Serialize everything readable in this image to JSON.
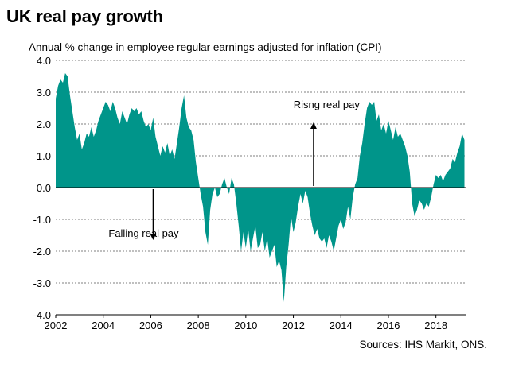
{
  "chart_data": {
    "type": "area",
    "title": "UK real pay growth",
    "subtitle": "Annual % change in employee regular earnings adjusted  for inflation (CPI)",
    "source": "Sources: IHS Markit, ONS.",
    "xlabel": "",
    "ylabel": "",
    "xlim": [
      2002,
      2019.25
    ],
    "ylim": [
      -4,
      4
    ],
    "y_ticks": [
      "4.0",
      "3.0",
      "2.0",
      "1.0",
      "0.0",
      "-1.0",
      "-2.0",
      "-3.0",
      "-4.0"
    ],
    "x_ticks": [
      "2002",
      "2004",
      "2006",
      "2008",
      "2010",
      "2012",
      "2014",
      "2016",
      "2018"
    ],
    "grid": "horizontal dashed",
    "fill_color": "#00958a",
    "annotations": [
      {
        "text": "Risng real pay",
        "x": 2013.4,
        "y": 2.5,
        "arrow_from_y": 0.05,
        "arrow_to_y": 1.95,
        "arrow_x": 2012.85
      },
      {
        "text": "Falling real pay",
        "x": 2005.7,
        "y": -1.55,
        "arrow_from_y": -0.05,
        "arrow_to_y": -1.55,
        "arrow_x": 2006.1
      }
    ],
    "x": [
      2002.0,
      2002.1,
      2002.2,
      2002.3,
      2002.4,
      2002.5,
      2002.6,
      2002.7,
      2002.8,
      2002.9,
      2003.0,
      2003.1,
      2003.2,
      2003.3,
      2003.4,
      2003.5,
      2003.6,
      2003.7,
      2003.8,
      2003.9,
      2004.0,
      2004.1,
      2004.2,
      2004.3,
      2004.4,
      2004.5,
      2004.6,
      2004.7,
      2004.8,
      2004.9,
      2005.0,
      2005.1,
      2005.2,
      2005.3,
      2005.4,
      2005.5,
      2005.6,
      2005.7,
      2005.8,
      2005.9,
      2006.0,
      2006.1,
      2006.2,
      2006.3,
      2006.4,
      2006.5,
      2006.6,
      2006.7,
      2006.8,
      2006.9,
      2007.0,
      2007.1,
      2007.2,
      2007.3,
      2007.4,
      2007.5,
      2007.6,
      2007.7,
      2007.8,
      2007.9,
      2008.0,
      2008.1,
      2008.2,
      2008.3,
      2008.4,
      2008.5,
      2008.6,
      2008.7,
      2008.8,
      2008.9,
      2009.0,
      2009.1,
      2009.2,
      2009.3,
      2009.4,
      2009.5,
      2009.6,
      2009.7,
      2009.8,
      2009.9,
      2010.0,
      2010.1,
      2010.2,
      2010.3,
      2010.4,
      2010.5,
      2010.6,
      2010.7,
      2010.8,
      2010.9,
      2011.0,
      2011.1,
      2011.2,
      2011.3,
      2011.4,
      2011.5,
      2011.6,
      2011.7,
      2011.8,
      2011.9,
      2012.0,
      2012.1,
      2012.2,
      2012.3,
      2012.4,
      2012.5,
      2012.6,
      2012.7,
      2012.8,
      2012.9,
      2013.0,
      2013.1,
      2013.2,
      2013.3,
      2013.4,
      2013.5,
      2013.6,
      2013.7,
      2013.8,
      2013.9,
      2014.0,
      2014.1,
      2014.2,
      2014.3,
      2014.4,
      2014.5,
      2014.6,
      2014.7,
      2014.8,
      2014.9,
      2015.0,
      2015.1,
      2015.2,
      2015.3,
      2015.4,
      2015.5,
      2015.6,
      2015.7,
      2015.8,
      2015.9,
      2016.0,
      2016.1,
      2016.2,
      2016.3,
      2016.4,
      2016.5,
      2016.6,
      2016.7,
      2016.8,
      2016.9,
      2017.0,
      2017.1,
      2017.2,
      2017.3,
      2017.4,
      2017.5,
      2017.6,
      2017.7,
      2017.8,
      2017.9,
      2018.0,
      2018.1,
      2018.2,
      2018.3,
      2018.4,
      2018.5,
      2018.6,
      2018.7,
      2018.8,
      2018.9,
      2019.0,
      2019.1,
      2019.2
    ],
    "y": [
      2.8,
      3.2,
      3.4,
      3.3,
      3.6,
      3.5,
      2.9,
      2.4,
      1.9,
      1.5,
      1.7,
      1.2,
      1.4,
      1.7,
      1.6,
      1.9,
      1.6,
      1.8,
      2.1,
      2.3,
      2.5,
      2.7,
      2.6,
      2.4,
      2.7,
      2.5,
      2.2,
      2.0,
      2.4,
      2.2,
      2.0,
      2.3,
      2.5,
      2.4,
      2.5,
      2.3,
      2.4,
      2.1,
      1.9,
      2.0,
      1.8,
      2.2,
      1.6,
      1.3,
      1.0,
      1.3,
      1.1,
      1.4,
      1.0,
      1.2,
      0.9,
      1.4,
      1.9,
      2.5,
      2.9,
      2.2,
      1.9,
      1.8,
      1.5,
      0.8,
      0.3,
      -0.2,
      -0.6,
      -1.4,
      -1.8,
      -0.7,
      -0.2,
      0.0,
      -0.3,
      -0.2,
      0.1,
      0.3,
      0.0,
      -0.2,
      0.3,
      0.1,
      -0.5,
      -1.2,
      -2.0,
      -1.4,
      -1.9,
      -1.3,
      -2.0,
      -1.6,
      -1.2,
      -1.9,
      -1.8,
      -1.4,
      -2.0,
      -1.6,
      -2.2,
      -2.0,
      -1.8,
      -2.5,
      -2.3,
      -2.6,
      -3.6,
      -2.5,
      -1.8,
      -0.9,
      -1.4,
      -1.1,
      -0.6,
      -0.2,
      -0.5,
      -0.1,
      -0.3,
      -0.8,
      -1.2,
      -1.5,
      -1.3,
      -1.6,
      -1.7,
      -1.6,
      -1.9,
      -1.5,
      -1.7,
      -2.0,
      -1.6,
      -1.2,
      -1.0,
      -1.3,
      -1.1,
      -0.6,
      -1.0,
      -0.3,
      0.1,
      0.3,
      1.0,
      1.4,
      2.0,
      2.5,
      2.7,
      2.6,
      2.7,
      2.1,
      2.3,
      1.8,
      2.0,
      1.7,
      2.1,
      1.8,
      1.5,
      1.9,
      1.6,
      1.7,
      1.5,
      1.3,
      1.0,
      0.5,
      -0.5,
      -0.9,
      -0.7,
      -0.4,
      -0.5,
      -0.7,
      -0.5,
      -0.6,
      -0.3,
      0.1,
      0.4,
      0.3,
      0.4,
      0.2,
      0.4,
      0.5,
      0.6,
      0.9,
      0.8,
      1.1,
      1.3,
      1.7,
      1.5
    ]
  }
}
